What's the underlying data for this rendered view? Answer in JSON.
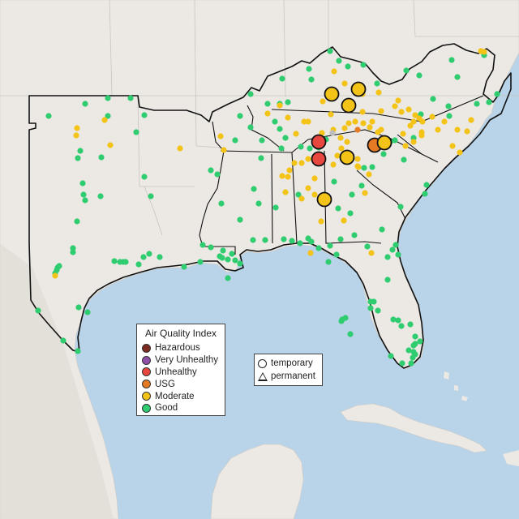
{
  "colors": {
    "water": "#b9d3e8",
    "land": "#ece9e5",
    "land_dark": "#e0dcd6",
    "hazardous": "#7e2b22",
    "very_unhealthy": "#8f4fa6",
    "unhealthy": "#e8473f",
    "usg": "#e57a24",
    "moderate": "#f3c318",
    "good": "#2fcc70",
    "no_data": "#bdbdbd"
  },
  "legend": {
    "title": "Air Quality Index",
    "items": [
      {
        "label": "Hazardous",
        "color": "#7e2b22"
      },
      {
        "label": "Very Unhealthy",
        "color": "#8f4fa6"
      },
      {
        "label": "Unhealthy",
        "color": "#e8473f"
      },
      {
        "label": "USG",
        "color": "#e57a24"
      },
      {
        "label": "Moderate",
        "color": "#f3c318"
      },
      {
        "label": "Good",
        "color": "#2fcc70"
      }
    ]
  },
  "shape_legend": {
    "temporary": "temporary",
    "permanent": "permanent"
  },
  "monitors": {
    "good": [
      [
        60,
        143
      ],
      [
        105,
        128
      ],
      [
        133,
        121
      ],
      [
        161,
        121
      ],
      [
        178,
        142
      ],
      [
        133,
        143
      ],
      [
        168,
        163
      ],
      [
        99,
        186
      ],
      [
        125,
        194
      ],
      [
        96,
        195
      ],
      [
        178,
        218
      ],
      [
        102,
        226
      ],
      [
        103,
        240
      ],
      [
        105,
        247
      ],
      [
        186,
        242
      ],
      [
        124,
        242
      ],
      [
        95,
        273
      ],
      [
        90,
        306
      ],
      [
        90,
        311
      ],
      [
        148,
        323
      ],
      [
        141,
        322
      ],
      [
        152,
        323
      ],
      [
        155,
        323
      ],
      [
        177,
        317
      ],
      [
        184,
        313
      ],
      [
        171,
        326
      ],
      [
        197,
        317
      ],
      [
        250,
        302
      ],
      [
        260,
        305
      ],
      [
        275,
        309
      ],
      [
        227,
        329
      ],
      [
        247,
        323
      ],
      [
        271,
        316
      ],
      [
        274,
        318
      ],
      [
        286,
        313
      ],
      [
        281,
        320
      ],
      [
        290,
        321
      ],
      [
        296,
        325
      ],
      [
        281,
        343
      ],
      [
        71,
        330
      ],
      [
        70,
        333
      ],
      [
        73,
        328
      ],
      [
        68,
        337
      ],
      [
        97,
        379
      ],
      [
        47,
        383
      ],
      [
        96,
        433
      ],
      [
        78,
        420
      ],
      [
        108,
        385
      ],
      [
        296,
        143
      ],
      [
        309,
        116
      ],
      [
        330,
        128
      ],
      [
        345,
        128
      ],
      [
        355,
        126
      ],
      [
        381,
        85
      ],
      [
        384,
        98
      ],
      [
        348,
        97
      ],
      [
        407,
        63
      ],
      [
        418,
        75
      ],
      [
        448,
        80
      ],
      [
        429,
        82
      ],
      [
        465,
        103
      ],
      [
        501,
        87
      ],
      [
        517,
        93
      ],
      [
        557,
        74
      ],
      [
        564,
        95
      ],
      [
        597,
        68
      ],
      [
        603,
        126
      ],
      [
        613,
        116
      ],
      [
        519,
        141
      ],
      [
        553,
        131
      ],
      [
        554,
        143
      ],
      [
        588,
        128
      ],
      [
        534,
        122
      ],
      [
        290,
        173
      ],
      [
        309,
        157
      ],
      [
        339,
        150
      ],
      [
        345,
        159
      ],
      [
        323,
        173
      ],
      [
        347,
        183
      ],
      [
        352,
        170
      ],
      [
        322,
        195
      ],
      [
        268,
        215
      ],
      [
        260,
        210
      ],
      [
        371,
        181
      ],
      [
        382,
        183
      ],
      [
        393,
        182
      ],
      [
        402,
        172
      ],
      [
        313,
        233
      ],
      [
        296,
        271
      ],
      [
        273,
        251
      ],
      [
        319,
        251
      ],
      [
        340,
        256
      ],
      [
        368,
        240
      ],
      [
        412,
        224
      ],
      [
        417,
        257
      ],
      [
        432,
        263
      ],
      [
        434,
        240
      ],
      [
        446,
        229
      ],
      [
        449,
        207
      ],
      [
        459,
        206
      ],
      [
        473,
        190
      ],
      [
        481,
        175
      ],
      [
        487,
        173
      ],
      [
        510,
        170
      ],
      [
        498,
        197
      ],
      [
        524,
        239
      ],
      [
        526,
        228
      ],
      [
        494,
        255
      ],
      [
        488,
        302
      ],
      [
        484,
        308
      ],
      [
        491,
        314
      ],
      [
        312,
        296
      ],
      [
        327,
        296
      ],
      [
        350,
        295
      ],
      [
        360,
        297
      ],
      [
        380,
        294
      ],
      [
        370,
        300
      ],
      [
        384,
        298
      ],
      [
        393,
        306
      ],
      [
        407,
        303
      ],
      [
        415,
        314
      ],
      [
        405,
        323
      ],
      [
        437,
        290
      ],
      [
        420,
        295
      ],
      [
        453,
        304
      ],
      [
        471,
        283
      ],
      [
        478,
        317
      ],
      [
        478,
        345
      ],
      [
        461,
        372
      ],
      [
        457,
        372
      ],
      [
        457,
        380
      ],
      [
        466,
        383
      ],
      [
        485,
        394
      ],
      [
        491,
        395
      ],
      [
        495,
        402
      ],
      [
        506,
        400
      ],
      [
        512,
        415
      ],
      [
        504,
        432
      ],
      [
        510,
        434
      ],
      [
        509,
        441
      ],
      [
        507,
        448
      ],
      [
        496,
        448
      ],
      [
        482,
        439
      ],
      [
        512,
        424
      ],
      [
        518,
        421
      ],
      [
        512,
        437
      ],
      [
        510,
        426
      ],
      [
        432,
        412
      ],
      [
        421,
        396
      ],
      [
        422,
        394
      ],
      [
        426,
        392
      ]
    ],
    "moderate": [
      [
        95,
        158
      ],
      [
        94,
        167
      ],
      [
        129,
        148
      ],
      [
        222,
        183
      ],
      [
        136,
        179
      ],
      [
        68,
        340
      ],
      [
        272,
        168
      ],
      [
        276,
        185
      ],
      [
        330,
        140
      ],
      [
        345,
        130
      ],
      [
        355,
        145
      ],
      [
        365,
        165
      ],
      [
        375,
        150
      ],
      [
        397,
        164
      ],
      [
        380,
        150
      ],
      [
        398,
        125
      ],
      [
        408,
        141
      ],
      [
        412,
        88
      ],
      [
        425,
        103
      ],
      [
        436,
        108
      ],
      [
        447,
        116
      ],
      [
        467,
        114
      ],
      [
        470,
        137
      ],
      [
        487,
        131
      ],
      [
        495,
        138
      ],
      [
        504,
        135
      ],
      [
        517,
        146
      ],
      [
        521,
        150
      ],
      [
        510,
        150
      ],
      [
        520,
        163
      ],
      [
        540,
        160
      ],
      [
        548,
        150
      ],
      [
        564,
        160
      ],
      [
        558,
        180
      ],
      [
        567,
        188
      ],
      [
        581,
        148
      ],
      [
        576,
        162
      ],
      [
        520,
        167
      ],
      [
        510,
        175
      ],
      [
        497,
        165
      ],
      [
        500,
        180
      ],
      [
        479,
        178
      ],
      [
        470,
        160
      ],
      [
        466,
        163
      ],
      [
        456,
        157
      ],
      [
        459,
        150
      ],
      [
        448,
        152
      ],
      [
        447,
        138
      ],
      [
        438,
        150
      ],
      [
        430,
        152
      ],
      [
        425,
        158
      ],
      [
        411,
        160
      ],
      [
        420,
        170
      ],
      [
        428,
        175
      ],
      [
        421,
        183
      ],
      [
        416,
        192
      ],
      [
        411,
        203
      ],
      [
        441,
        196
      ],
      [
        441,
        205
      ],
      [
        455,
        215
      ],
      [
        450,
        238
      ],
      [
        380,
        196
      ],
      [
        357,
        210
      ],
      [
        355,
        218
      ],
      [
        363,
        201
      ],
      [
        372,
        201
      ],
      [
        348,
        217
      ],
      [
        352,
        237
      ],
      [
        388,
        220
      ],
      [
        388,
        240
      ],
      [
        380,
        232
      ],
      [
        372,
        245
      ],
      [
        395,
        248
      ],
      [
        424,
        272
      ],
      [
        396,
        273
      ],
      [
        383,
        312
      ],
      [
        458,
        312
      ],
      [
        442,
        206
      ],
      [
        491,
        124
      ],
      [
        512,
        142
      ],
      [
        533,
        144
      ],
      [
        506,
        155
      ],
      [
        593,
        63
      ],
      [
        597,
        64
      ]
    ],
    "usg_small": [
      [
        441,
        160
      ]
    ],
    "nodata": [
      [
        410,
        164
      ]
    ],
    "large": [
      {
        "c": "moderate",
        "x": 409,
        "y": 116
      },
      {
        "c": "moderate",
        "x": 442,
        "y": 110
      },
      {
        "c": "moderate",
        "x": 430,
        "y": 130
      },
      {
        "c": "unhealthy",
        "x": 393,
        "y": 175
      },
      {
        "c": "unhealthy",
        "x": 393,
        "y": 196
      },
      {
        "c": "moderate",
        "x": 428,
        "y": 194
      },
      {
        "c": "usg",
        "x": 462,
        "y": 179
      },
      {
        "c": "moderate",
        "x": 474,
        "y": 176
      },
      {
        "c": "moderate",
        "x": 400,
        "y": 246
      }
    ]
  }
}
